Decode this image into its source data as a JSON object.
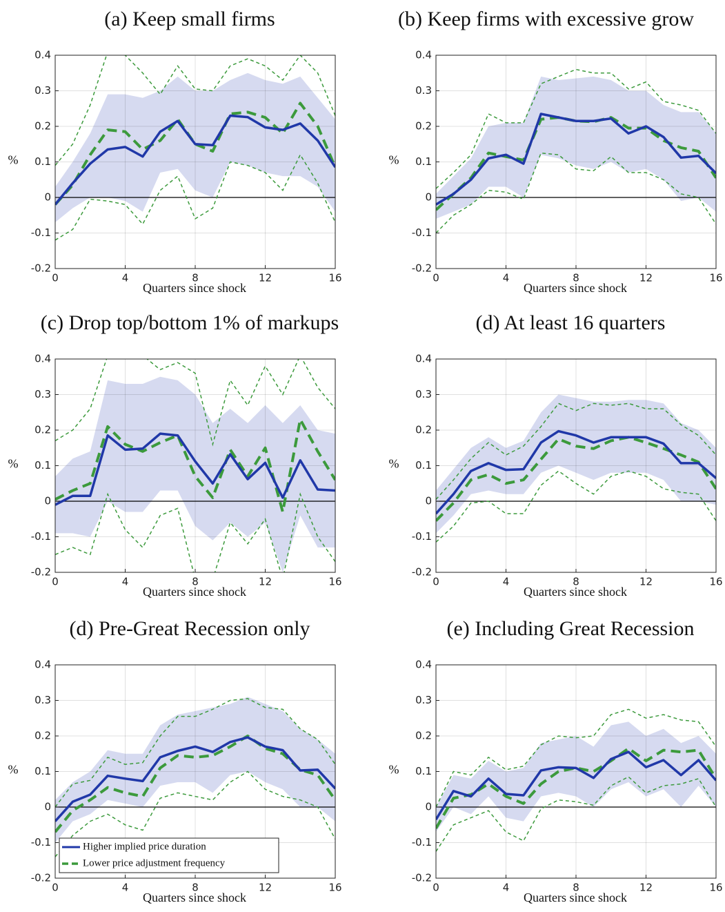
{
  "chart_data": [
    {
      "type": "line",
      "title": "(a) Keep small firms",
      "xlabel": "Quarters since shock",
      "ylabel": "%",
      "x": [
        0,
        1,
        2,
        3,
        4,
        5,
        6,
        7,
        8,
        9,
        10,
        11,
        12,
        13,
        14,
        15,
        16
      ],
      "xlim": [
        0,
        16
      ],
      "xticks": [
        0,
        4,
        8,
        12,
        16
      ],
      "ylim": [
        -0.2,
        0.4
      ],
      "yticks": [
        -0.2,
        -0.1,
        0,
        0.1,
        0.2,
        0.3,
        0.4
      ],
      "grid": true,
      "band": {
        "color": "#d6daf0",
        "upper": [
          0.03,
          0.1,
          0.18,
          0.29,
          0.29,
          0.28,
          0.3,
          0.34,
          0.3,
          0.3,
          0.33,
          0.35,
          0.33,
          0.32,
          0.34,
          0.28,
          0.22
        ],
        "lower": [
          -0.07,
          -0.03,
          0,
          0,
          -0.01,
          -0.04,
          0.07,
          0.08,
          0.02,
          0,
          0.1,
          0.09,
          0.07,
          0.06,
          0.06,
          0.03,
          -0.04
        ]
      },
      "bounds": {
        "color": "#3c9a3c",
        "upper": [
          0.09,
          0.15,
          0.26,
          0.41,
          0.4,
          0.35,
          0.29,
          0.37,
          0.305,
          0.3,
          0.37,
          0.39,
          0.37,
          0.33,
          0.4,
          0.35,
          0.23
        ],
        "lower": [
          -0.12,
          -0.09,
          -0.005,
          -0.01,
          -0.02,
          -0.075,
          0.02,
          0.06,
          -0.06,
          -0.03,
          0.1,
          0.09,
          0.07,
          0.02,
          0.12,
          0.04,
          -0.07
        ]
      },
      "series": [
        {
          "color": "#2038a8",
          "style": "solid",
          "values": [
            -0.02,
            0.04,
            0.095,
            0.135,
            0.142,
            0.115,
            0.185,
            0.215,
            0.15,
            0.147,
            0.23,
            0.226,
            0.197,
            0.19,
            0.208,
            0.16,
            0.085
          ]
        },
        {
          "color": "#3c9a3c",
          "style": "dashed",
          "values": [
            -0.02,
            0.035,
            0.12,
            0.19,
            0.185,
            0.135,
            0.16,
            0.22,
            0.15,
            0.13,
            0.235,
            0.24,
            0.225,
            0.18,
            0.265,
            0.2,
            0.085
          ]
        }
      ]
    },
    {
      "type": "line",
      "title": "(b) Keep firms with excessive grow",
      "xlabel": "Quarters since shock",
      "ylabel": "%",
      "x": [
        0,
        1,
        2,
        3,
        4,
        5,
        6,
        7,
        8,
        9,
        10,
        11,
        12,
        13,
        14,
        15,
        16
      ],
      "xlim": [
        0,
        16
      ],
      "xticks": [
        0,
        4,
        8,
        12,
        16
      ],
      "ylim": [
        -0.2,
        0.4
      ],
      "yticks": [
        -0.2,
        -0.1,
        0,
        0.1,
        0.2,
        0.3,
        0.4
      ],
      "grid": true,
      "band": {
        "color": "#d6daf0",
        "upper": [
          0.01,
          0.06,
          0.11,
          0.2,
          0.21,
          0.21,
          0.34,
          0.33,
          0.335,
          0.34,
          0.33,
          0.3,
          0.3,
          0.26,
          0.24,
          0.24,
          0.18
        ],
        "lower": [
          -0.06,
          -0.04,
          -0.02,
          0.03,
          0.03,
          0,
          0.12,
          0.11,
          0.09,
          0.08,
          0.1,
          0.07,
          0.08,
          0.05,
          -0.01,
          0,
          -0.04
        ]
      },
      "bounds": {
        "color": "#3c9a3c",
        "upper": [
          0.025,
          0.07,
          0.12,
          0.235,
          0.21,
          0.21,
          0.32,
          0.34,
          0.36,
          0.35,
          0.35,
          0.305,
          0.325,
          0.27,
          0.26,
          0.245,
          0.18
        ],
        "lower": [
          -0.1,
          -0.05,
          -0.02,
          0.02,
          0.015,
          -0.005,
          0.125,
          0.12,
          0.08,
          0.075,
          0.115,
          0.07,
          0.07,
          0.05,
          0.01,
          0,
          -0.075
        ]
      },
      "series": [
        {
          "color": "#2038a8",
          "style": "solid",
          "values": [
            -0.02,
            0.01,
            0.05,
            0.11,
            0.12,
            0.095,
            0.235,
            0.225,
            0.215,
            0.215,
            0.222,
            0.18,
            0.2,
            0.17,
            0.112,
            0.117,
            0.068
          ]
        },
        {
          "color": "#3c9a3c",
          "style": "dashed",
          "values": [
            -0.035,
            0.01,
            0.055,
            0.125,
            0.115,
            0.105,
            0.22,
            0.225,
            0.215,
            0.213,
            0.225,
            0.195,
            0.195,
            0.16,
            0.14,
            0.13,
            0.055
          ]
        }
      ]
    },
    {
      "type": "line",
      "title": "(c) Drop top/bottom 1% of markups",
      "xlabel": "Quarters since shock",
      "ylabel": "%",
      "x": [
        0,
        1,
        2,
        3,
        4,
        5,
        6,
        7,
        8,
        9,
        10,
        11,
        12,
        13,
        14,
        15,
        16
      ],
      "xlim": [
        0,
        16
      ],
      "xticks": [
        0,
        4,
        8,
        12,
        16
      ],
      "ylim": [
        -0.2,
        0.4
      ],
      "yticks": [
        -0.2,
        -0.1,
        0,
        0.1,
        0.2,
        0.3,
        0.4
      ],
      "grid": true,
      "band": {
        "color": "#d6daf0",
        "upper": [
          0.07,
          0.12,
          0.14,
          0.34,
          0.33,
          0.33,
          0.35,
          0.34,
          0.3,
          0.22,
          0.26,
          0.22,
          0.27,
          0.22,
          0.27,
          0.2,
          0.19
        ],
        "lower": [
          -0.09,
          -0.09,
          -0.1,
          0,
          -0.03,
          -0.03,
          0.03,
          0.03,
          -0.07,
          -0.11,
          -0.06,
          -0.1,
          -0.06,
          -0.2,
          -0.04,
          -0.13,
          -0.13
        ]
      },
      "bounds": {
        "color": "#3c9a3c",
        "upper": [
          0.17,
          0.2,
          0.26,
          0.41,
          0.41,
          0.41,
          0.37,
          0.39,
          0.36,
          0.16,
          0.34,
          0.27,
          0.38,
          0.3,
          0.41,
          0.32,
          0.26
        ],
        "lower": [
          -0.15,
          -0.13,
          -0.15,
          0.02,
          -0.08,
          -0.13,
          -0.04,
          -0.02,
          -0.22,
          -0.22,
          -0.06,
          -0.12,
          -0.05,
          -0.22,
          0.02,
          -0.1,
          -0.17
        ]
      },
      "series": [
        {
          "color": "#2038a8",
          "style": "solid",
          "values": [
            -0.01,
            0.015,
            0.015,
            0.185,
            0.145,
            0.148,
            0.19,
            0.185,
            0.112,
            0.05,
            0.132,
            0.062,
            0.108,
            0.01,
            0.115,
            0.033,
            0.03
          ]
        },
        {
          "color": "#3c9a3c",
          "style": "dashed",
          "values": [
            0.005,
            0.03,
            0.05,
            0.21,
            0.16,
            0.14,
            0.165,
            0.185,
            0.07,
            0.01,
            0.145,
            0.07,
            0.15,
            -0.03,
            0.23,
            0.14,
            0.06
          ]
        }
      ]
    },
    {
      "type": "line",
      "title": "(d) At least 16 quarters",
      "xlabel": "Quarters since shock",
      "ylabel": "%",
      "x": [
        0,
        1,
        2,
        3,
        4,
        5,
        6,
        7,
        8,
        9,
        10,
        11,
        12,
        13,
        14,
        15,
        16
      ],
      "xlim": [
        0,
        16
      ],
      "xticks": [
        0,
        4,
        8,
        12,
        16
      ],
      "ylim": [
        -0.2,
        0.4
      ],
      "yticks": [
        -0.2,
        -0.1,
        0,
        0.1,
        0.2,
        0.3,
        0.4
      ],
      "grid": true,
      "band": {
        "color": "#d6daf0",
        "upper": [
          0.03,
          0.09,
          0.15,
          0.18,
          0.15,
          0.17,
          0.25,
          0.3,
          0.29,
          0.28,
          0.28,
          0.285,
          0.285,
          0.275,
          0.22,
          0.2,
          0.15
        ],
        "lower": [
          -0.09,
          -0.04,
          0.02,
          0.03,
          0.02,
          0.02,
          0.08,
          0.1,
          0.08,
          0.06,
          0.08,
          0.08,
          0.08,
          0.06,
          0,
          0,
          -0.01
        ]
      },
      "bounds": {
        "color": "#3c9a3c",
        "upper": [
          0.005,
          0.06,
          0.12,
          0.165,
          0.13,
          0.155,
          0.21,
          0.275,
          0.255,
          0.275,
          0.27,
          0.275,
          0.26,
          0.26,
          0.215,
          0.185,
          0.13
        ],
        "lower": [
          -0.115,
          -0.07,
          -0.005,
          0,
          -0.035,
          -0.035,
          0.045,
          0.085,
          0.05,
          0.02,
          0.07,
          0.085,
          0.07,
          0.035,
          0.025,
          0.02,
          -0.055
        ]
      },
      "series": [
        {
          "color": "#2038a8",
          "style": "solid",
          "values": [
            -0.035,
            0.02,
            0.085,
            0.107,
            0.088,
            0.09,
            0.165,
            0.197,
            0.185,
            0.165,
            0.18,
            0.18,
            0.18,
            0.162,
            0.107,
            0.107,
            0.065
          ]
        },
        {
          "color": "#3c9a3c",
          "style": "dashed",
          "values": [
            -0.055,
            -0.005,
            0.06,
            0.075,
            0.05,
            0.06,
            0.118,
            0.175,
            0.155,
            0.148,
            0.17,
            0.18,
            0.165,
            0.148,
            0.13,
            0.11,
            0.035
          ]
        }
      ]
    },
    {
      "type": "line",
      "title": "(d) Pre-Great Recession only",
      "xlabel": "Quarters since shock",
      "ylabel": "%",
      "x": [
        0,
        1,
        2,
        3,
        4,
        5,
        6,
        7,
        8,
        9,
        10,
        11,
        12,
        13,
        14,
        15,
        16
      ],
      "xlim": [
        0,
        16
      ],
      "xticks": [
        0,
        4,
        8,
        12,
        16
      ],
      "ylim": [
        -0.2,
        0.4
      ],
      "yticks": [
        -0.2,
        -0.1,
        0,
        0.1,
        0.2,
        0.3,
        0.4
      ],
      "grid": true,
      "legend": "lower left",
      "band": {
        "color": "#d6daf0",
        "upper": [
          0.02,
          0.07,
          0.1,
          0.16,
          0.15,
          0.15,
          0.23,
          0.26,
          0.27,
          0.28,
          0.29,
          0.31,
          0.29,
          0.27,
          0.22,
          0.19,
          0.15
        ],
        "lower": [
          -0.1,
          -0.04,
          -0.02,
          0.02,
          0.01,
          0,
          0.06,
          0.07,
          0.07,
          0.04,
          0.09,
          0.1,
          0.07,
          0.05,
          0,
          0,
          -0.04
        ]
      },
      "bounds": {
        "color": "#3c9a3c",
        "upper": [
          0,
          0.065,
          0.075,
          0.14,
          0.12,
          0.125,
          0.2,
          0.255,
          0.255,
          0.275,
          0.3,
          0.305,
          0.28,
          0.275,
          0.22,
          0.19,
          0.12
        ],
        "lower": [
          -0.14,
          -0.08,
          -0.04,
          -0.02,
          -0.05,
          -0.065,
          0.025,
          0.04,
          0.03,
          0.02,
          0.07,
          0.1,
          0.05,
          0.03,
          0.02,
          0,
          -0.09
        ]
      },
      "series": [
        {
          "name": "Higher implied price duration",
          "color": "#2038a8",
          "style": "solid",
          "values": [
            -0.04,
            0.015,
            0.035,
            0.088,
            0.08,
            0.073,
            0.14,
            0.158,
            0.17,
            0.155,
            0.183,
            0.196,
            0.17,
            0.16,
            0.103,
            0.105,
            0.052
          ]
        },
        {
          "name": "Lower price adjustment frequency",
          "color": "#3c9a3c",
          "style": "dashed",
          "values": [
            -0.07,
            -0.01,
            0.02,
            0.055,
            0.04,
            0.03,
            0.11,
            0.145,
            0.14,
            0.145,
            0.17,
            0.2,
            0.165,
            0.15,
            0.105,
            0.09,
            0.02
          ]
        }
      ]
    },
    {
      "type": "line",
      "title": "(e) Including Great Recession",
      "xlabel": "Quarters since shock",
      "ylabel": "%",
      "x": [
        0,
        1,
        2,
        3,
        4,
        5,
        6,
        7,
        8,
        9,
        10,
        11,
        12,
        13,
        14,
        15,
        16
      ],
      "xlim": [
        0,
        16
      ],
      "xticks": [
        0,
        4,
        8,
        12,
        16
      ],
      "ylim": [
        -0.2,
        0.4
      ],
      "yticks": [
        -0.2,
        -0.1,
        0,
        0.1,
        0.2,
        0.3,
        0.4
      ],
      "grid": true,
      "band": {
        "color": "#d6daf0",
        "upper": [
          0,
          0.09,
          0.08,
          0.13,
          0.1,
          0.11,
          0.18,
          0.19,
          0.2,
          0.17,
          0.23,
          0.24,
          0.2,
          0.22,
          0.18,
          0.2,
          0.15
        ],
        "lower": [
          -0.07,
          0,
          -0.02,
          0.03,
          -0.03,
          -0.04,
          0.03,
          0.04,
          0.03,
          0,
          0.05,
          0.07,
          0.03,
          0.05,
          0,
          0.06,
          0
        ]
      },
      "bounds": {
        "color": "#3c9a3c",
        "upper": [
          0,
          0.1,
          0.09,
          0.14,
          0.105,
          0.115,
          0.175,
          0.2,
          0.195,
          0.2,
          0.26,
          0.275,
          0.25,
          0.26,
          0.245,
          0.24,
          0.17
        ],
        "lower": [
          -0.125,
          -0.05,
          -0.03,
          -0.01,
          -0.07,
          -0.095,
          -0.005,
          0.02,
          0.015,
          0.005,
          0.06,
          0.085,
          0.04,
          0.06,
          0.065,
          0.08,
          0
        ]
      },
      "series": [
        {
          "color": "#2038a8",
          "style": "solid",
          "values": [
            -0.035,
            0.045,
            0.03,
            0.08,
            0.037,
            0.033,
            0.103,
            0.112,
            0.11,
            0.082,
            0.135,
            0.155,
            0.112,
            0.132,
            0.09,
            0.132,
            0.075
          ]
        },
        {
          "color": "#3c9a3c",
          "style": "dashed",
          "values": [
            -0.06,
            0.025,
            0.035,
            0.065,
            0.03,
            0.01,
            0.065,
            0.1,
            0.11,
            0.1,
            0.13,
            0.165,
            0.13,
            0.16,
            0.155,
            0.16,
            0.08
          ]
        }
      ]
    }
  ]
}
